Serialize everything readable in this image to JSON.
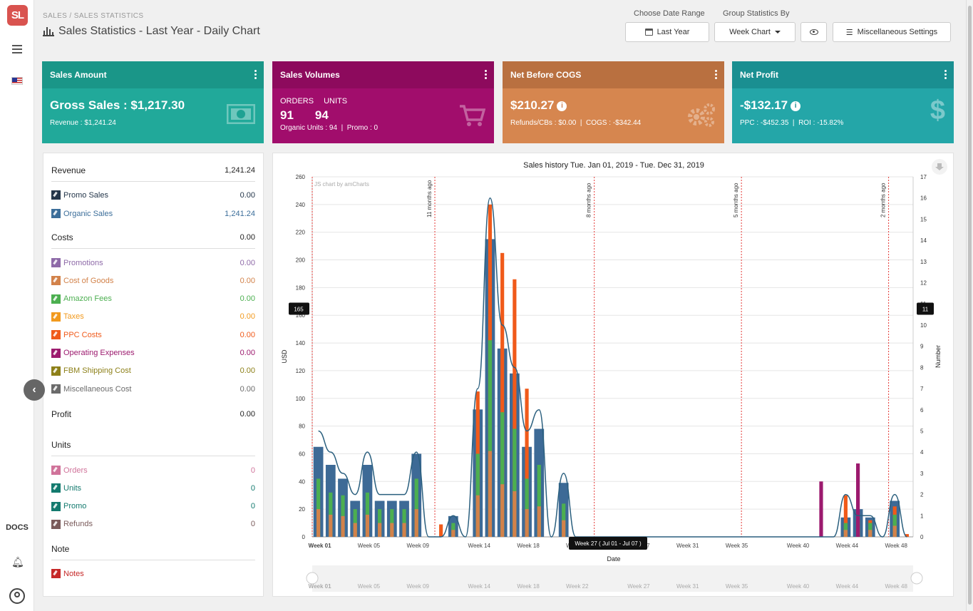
{
  "app": {
    "logo": "SL",
    "docs_label": "DOCS",
    "breadcrumb": "SALES / SALES STATISTICS",
    "title": "Sales Statistics - Last Year - Daily Chart"
  },
  "header": {
    "date_range_label": "Choose Date Range",
    "date_range_value": "Last Year",
    "group_by_label": "Group Statistics By",
    "group_by_value": "Week Chart",
    "misc_settings": "Miscellaneous Settings"
  },
  "cards": [
    {
      "title": "Sales Amount",
      "main": "Gross Sales : $1,217.30",
      "sub": "Revenue : $1,241.24",
      "color": "#21a99a",
      "head_color": "#1a9688"
    },
    {
      "title": "Sales Volumes",
      "orders_label": "ORDERS",
      "units_label": "UNITS",
      "orders": "91",
      "units": "94",
      "sub": "Organic Units : 94  |  Promo : 0",
      "color": "#a10d6c",
      "head_color": "#8d0a5d"
    },
    {
      "title": "Net Before COGS",
      "main": "$210.27",
      "sub": "Refunds/CBs : $0.00  |  COGS : -$342.44",
      "color": "#d6864f",
      "head_color": "#b97040"
    },
    {
      "title": "Net Profit",
      "main": "-$132.17",
      "sub": "PPC : -$452.35  |  ROI : -15.82%",
      "color": "#24a6a8",
      "head_color": "#1a8f91"
    }
  ],
  "panel": {
    "revenue_label": "Revenue",
    "revenue_value": "1,241.24",
    "revenue_items": [
      {
        "label": "Promo Sales",
        "value": "0.00",
        "color": "#24364a"
      },
      {
        "label": "Organic Sales",
        "value": "1,241.24",
        "color": "#3c6e9a"
      }
    ],
    "costs_label": "Costs",
    "costs_value": "0.00",
    "cost_items": [
      {
        "label": "Promotions",
        "value": "0.00",
        "color": "#8e6aa8"
      },
      {
        "label": "Cost of Goods",
        "value": "0.00",
        "color": "#d2824a"
      },
      {
        "label": "Amazon Fees",
        "value": "0.00",
        "color": "#4caf50"
      },
      {
        "label": "Taxes",
        "value": "0.00",
        "color": "#f29a1e"
      },
      {
        "label": "PPC Costs",
        "value": "0.00",
        "color": "#f05a1a"
      },
      {
        "label": "Operating Expenses",
        "value": "0.00",
        "color": "#9c1a6e"
      },
      {
        "label": "FBM Shipping Cost",
        "value": "0.00",
        "color": "#8d8019"
      },
      {
        "label": "Miscellaneous Cost",
        "value": "0.00",
        "color": "#6b6b6b"
      }
    ],
    "profit_label": "Profit",
    "profit_value": "0.00",
    "units_label": "Units",
    "unit_items": [
      {
        "label": "Orders",
        "value": "0",
        "color": "#d0739a"
      },
      {
        "label": "Units",
        "value": "0",
        "color": "#137a6e"
      },
      {
        "label": "Promo",
        "value": "0",
        "color": "#137a6e"
      },
      {
        "label": "Refunds",
        "value": "0",
        "color": "#7a5b5b"
      }
    ],
    "note_label": "Note",
    "note_item": {
      "label": "Notes",
      "color": "#c62828"
    }
  },
  "chart_data": {
    "type": "bar",
    "title": "Sales history Tue. Jan 01, 2019 - Tue. Dec 31, 2019",
    "credit": "JS chart by amCharts",
    "xlabel": "Date",
    "ylabel": "USD",
    "y2label": "Number",
    "ylim": [
      0,
      260
    ],
    "y2lim": [
      0,
      17
    ],
    "y_ticks": [
      0,
      20,
      40,
      60,
      80,
      100,
      120,
      140,
      160,
      180,
      200,
      220,
      240,
      260
    ],
    "y2_ticks": [
      0,
      1,
      2,
      3,
      4,
      5,
      6,
      7,
      8,
      9,
      10,
      11,
      12,
      13,
      14,
      15,
      16,
      17
    ],
    "x_ticks": [
      "Week 01",
      "Week 05",
      "Week 09",
      "Week 14",
      "Week 18",
      "Week 22",
      "Week 27",
      "Week 31",
      "Week 35",
      "Week 40",
      "Week 44",
      "Week 48"
    ],
    "guides": [
      "11 months ago",
      "8 months ago",
      "5 months ago",
      "2 months ago"
    ],
    "cursor_y_label": "165",
    "cursor_y2_label": "11",
    "cursor_x_label": "Week 27 ( Jul 01 - Jul 07 )",
    "series": [
      {
        "name": "Organic Sales",
        "color": "#3d6a96",
        "values": [
          65,
          52,
          42,
          26,
          52,
          26,
          26,
          26,
          60,
          0,
          0,
          15,
          0,
          92,
          215,
          136,
          118,
          65,
          78,
          0,
          39,
          0,
          0,
          0,
          0,
          0,
          0,
          0,
          0,
          0,
          0,
          0,
          0,
          0,
          0,
          0,
          0,
          0,
          0,
          0,
          0,
          0,
          0,
          14,
          20,
          14,
          0,
          26,
          0
        ]
      },
      {
        "name": "Amazon Fees",
        "color": "#4caf50",
        "values": [
          42,
          32,
          30,
          20,
          32,
          20,
          20,
          20,
          42,
          0,
          0,
          10,
          0,
          60,
          142,
          90,
          78,
          42,
          52,
          0,
          24,
          0,
          0,
          0,
          0,
          0,
          0,
          0,
          0,
          0,
          0,
          0,
          0,
          0,
          0,
          0,
          0,
          0,
          0,
          0,
          0,
          0,
          0,
          10,
          12,
          10,
          0,
          16,
          0
        ]
      },
      {
        "name": "Cost of Goods",
        "color": "#d2824a",
        "values": [
          20,
          16,
          15,
          10,
          16,
          10,
          10,
          10,
          20,
          0,
          0,
          5,
          0,
          30,
          62,
          38,
          33,
          20,
          22,
          0,
          12,
          0,
          0,
          0,
          0,
          0,
          0,
          0,
          0,
          0,
          0,
          0,
          0,
          0,
          0,
          0,
          0,
          0,
          0,
          0,
          0,
          0,
          0,
          5,
          6,
          5,
          0,
          8,
          0
        ]
      },
      {
        "name": "PPC Costs",
        "color": "#f05a1a",
        "values": [
          0,
          0,
          0,
          0,
          0,
          0,
          0,
          0,
          0,
          0,
          9,
          8,
          0,
          105,
          240,
          205,
          186,
          107,
          0,
          0,
          0,
          0,
          0,
          0,
          0,
          0,
          0,
          0,
          0,
          0,
          0,
          0,
          0,
          0,
          0,
          0,
          0,
          0,
          0,
          0,
          0,
          0,
          0,
          30,
          12,
          12,
          0,
          22,
          2
        ]
      },
      {
        "name": "Operating Expenses",
        "color": "#9c1a6e",
        "values": [
          0,
          0,
          0,
          0,
          0,
          0,
          0,
          0,
          0,
          0,
          0,
          0,
          0,
          0,
          0,
          0,
          0,
          0,
          0,
          0,
          0,
          0,
          0,
          0,
          0,
          0,
          0,
          0,
          0,
          0,
          0,
          0,
          0,
          0,
          0,
          0,
          0,
          0,
          0,
          0,
          0,
          40,
          0,
          0,
          53,
          0,
          0,
          0,
          0
        ]
      },
      {
        "name": "Units",
        "color": "#2a5f7e",
        "axis": "right",
        "values": [
          5,
          4,
          3,
          2,
          4,
          2,
          2,
          2,
          4,
          0,
          0,
          1,
          0,
          7,
          16,
          10,
          8,
          5,
          6,
          0,
          3,
          0,
          0,
          0,
          0,
          0,
          0,
          0,
          0,
          0,
          0,
          0,
          0,
          0,
          0,
          0,
          0,
          0,
          0,
          0,
          0,
          0,
          0,
          2,
          1,
          1,
          0,
          2,
          0
        ]
      }
    ]
  }
}
